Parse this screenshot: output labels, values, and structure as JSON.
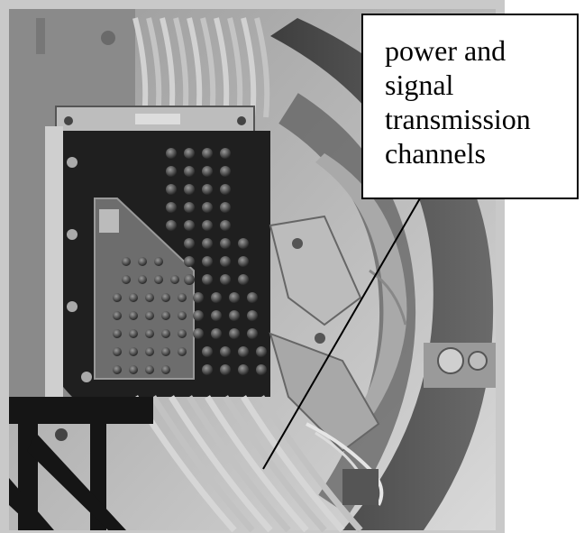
{
  "figure": {
    "callout": {
      "lines": [
        "power and",
        "signal",
        "transmission",
        "channels"
      ]
    }
  }
}
